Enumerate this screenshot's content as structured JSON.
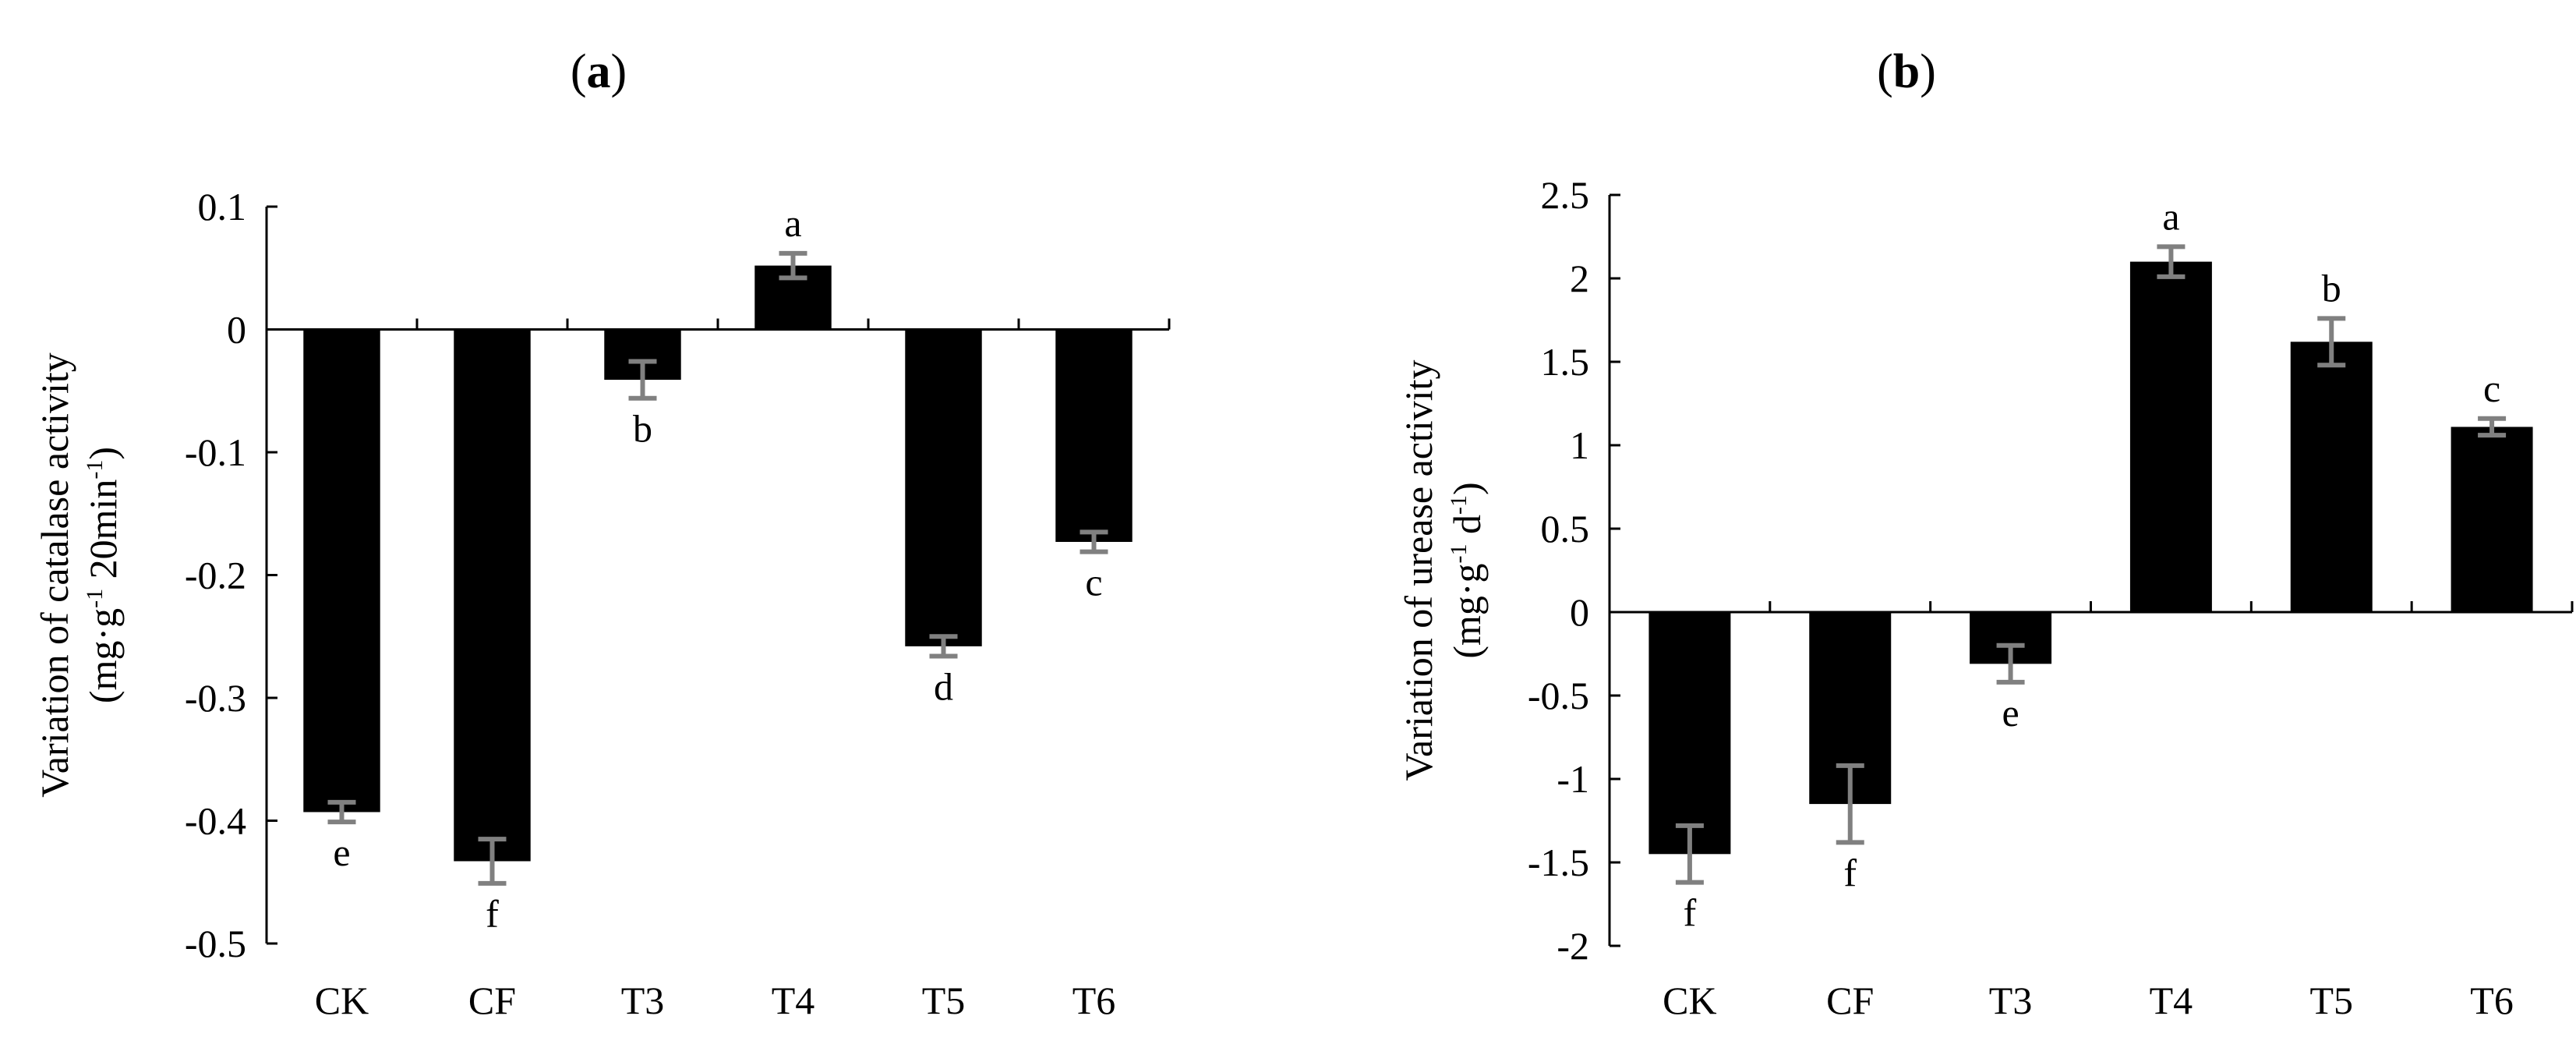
{
  "panels": [
    {
      "label": "a",
      "chart_data": {
        "type": "bar",
        "categories": [
          "CK",
          "CF",
          "T3",
          "T4",
          "T5",
          "T6"
        ],
        "values": [
          -0.393,
          -0.433,
          -0.041,
          0.052,
          -0.258,
          -0.173
        ],
        "errors": [
          0.008,
          0.018,
          0.015,
          0.01,
          0.008,
          0.008
        ],
        "significance": [
          "e",
          "f",
          "b",
          "a",
          "d",
          "c"
        ],
        "ylim": [
          -0.5,
          0.1
        ],
        "yticks": [
          "0.1",
          "0",
          "-0.1",
          "-0.2",
          "-0.3",
          "-0.4",
          "-0.5"
        ],
        "ytick_values": [
          0.1,
          0,
          -0.1,
          -0.2,
          -0.3,
          -0.4,
          -0.5
        ],
        "ylabel_line1": "Variation of catalase activity",
        "ylabel_line2_parts": [
          "(mg·g",
          "-1",
          "  20min",
          "-1",
          ")"
        ],
        "bar_color": "#000000",
        "error_color": "#808080"
      }
    },
    {
      "label": "b",
      "chart_data": {
        "type": "bar",
        "categories": [
          "CK",
          "CF",
          "T3",
          "T4",
          "T5",
          "T6"
        ],
        "values": [
          -1.45,
          -1.15,
          -0.31,
          2.1,
          1.62,
          1.11
        ],
        "errors": [
          0.17,
          0.23,
          0.11,
          0.09,
          0.14,
          0.05
        ],
        "significance": [
          "f",
          "f",
          "e",
          "a",
          "b",
          "c"
        ],
        "ylim": [
          -2,
          2.5
        ],
        "yticks": [
          "2.5",
          "2",
          "1.5",
          "1",
          "0.5",
          "0",
          "-0.5",
          "-1",
          "-1.5",
          "-2"
        ],
        "ytick_values": [
          2.5,
          2,
          1.5,
          1,
          0.5,
          0,
          -0.5,
          -1,
          -1.5,
          -2
        ],
        "ylabel_line1": "Variation of urease activity",
        "ylabel_line2_parts": [
          "(mg·g",
          "-1",
          " d",
          "-1",
          ")"
        ],
        "bar_color": "#000000",
        "error_color": "#808080"
      }
    }
  ]
}
